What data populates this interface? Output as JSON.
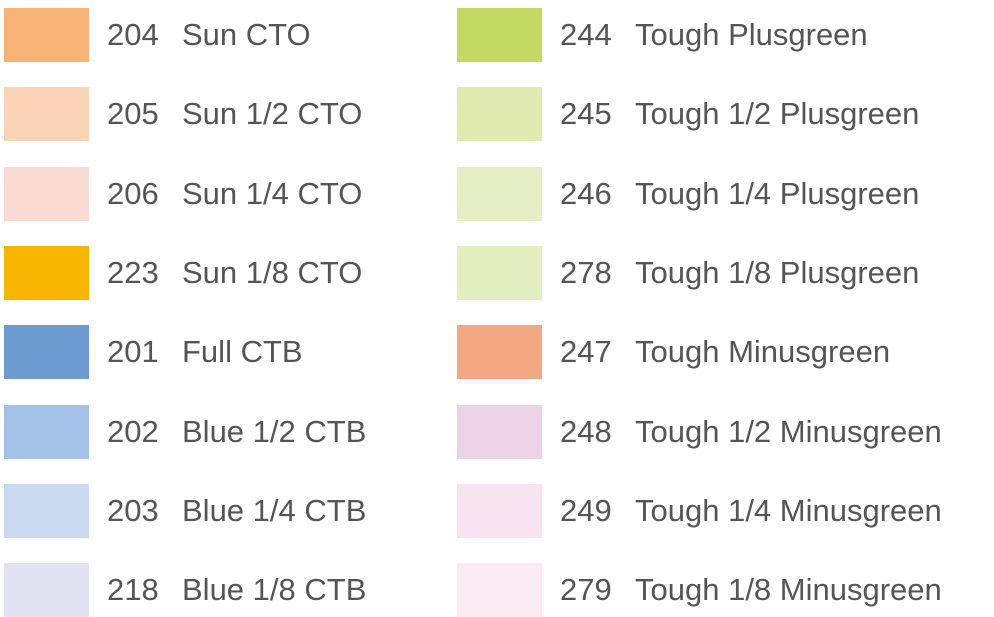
{
  "columns": [
    {
      "items": [
        {
          "code": "204",
          "name": "Sun CTO",
          "color": "#F7B375"
        },
        {
          "code": "205",
          "name": "Sun 1/2 CTO",
          "color": "#FBD4B8"
        },
        {
          "code": "206",
          "name": "Sun 1/4 CTO",
          "color": "#FADBD3"
        },
        {
          "code": "223",
          "name": "Sun 1/8 CTO",
          "color": "#F7B500"
        },
        {
          "code": "201",
          "name": "Full CTB",
          "color": "#6C9BD2"
        },
        {
          "code": "202",
          "name": "Blue 1/2 CTB",
          "color": "#A4C2E8"
        },
        {
          "code": "203",
          "name": "Blue 1/4 CTB",
          "color": "#C9DAF1"
        },
        {
          "code": "218",
          "name": "Blue 1/8 CTB",
          "color": "#E4E3F3"
        }
      ]
    },
    {
      "items": [
        {
          "code": "244",
          "name": "Tough Plusgreen",
          "color": "#C4D961"
        },
        {
          "code": "245",
          "name": "Tough 1/2 Plusgreen",
          "color": "#E1EBB1"
        },
        {
          "code": "246",
          "name": "Tough 1/4 Plusgreen",
          "color": "#E6EFC4"
        },
        {
          "code": "278",
          "name": "Tough 1/8 Plusgreen",
          "color": "#E3EEC1"
        },
        {
          "code": "247",
          "name": "Tough Minusgreen",
          "color": "#F2A882"
        },
        {
          "code": "248",
          "name": "Tough 1/2 Minusgreen",
          "color": "#EDD3E8"
        },
        {
          "code": "249",
          "name": "Tough 1/4 Minusgreen",
          "color": "#F8E4F1"
        },
        {
          "code": "279",
          "name": "Tough 1/8 Minusgreen",
          "color": "#FCEAF4"
        }
      ]
    }
  ]
}
